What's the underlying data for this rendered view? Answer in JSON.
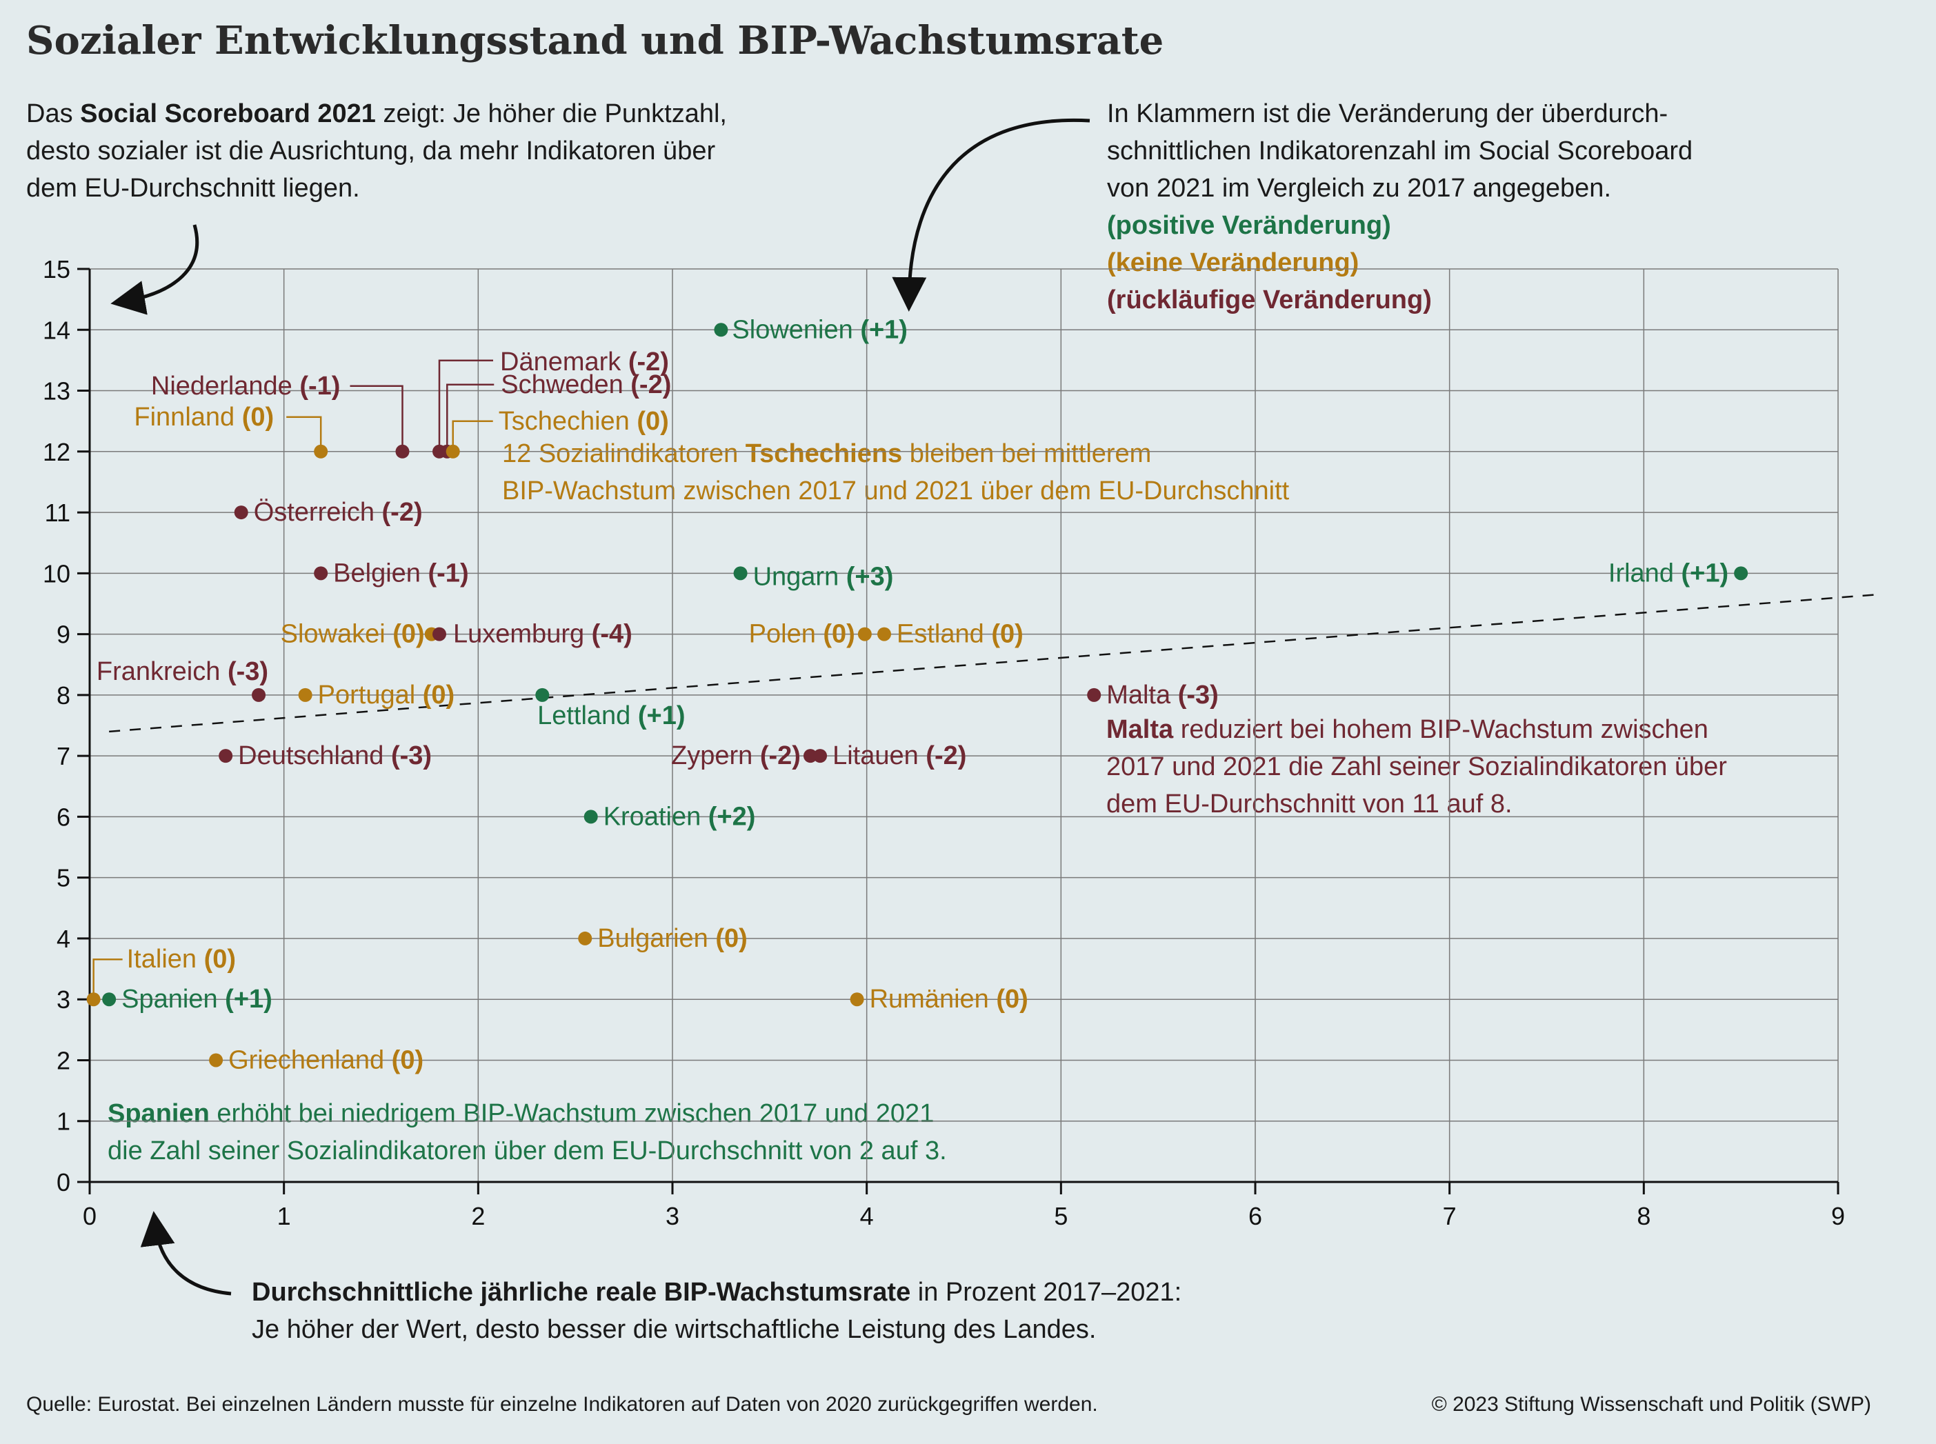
{
  "title": "Sozialer Entwicklungsstand und BIP-Wachstumsrate",
  "intro": {
    "line1_pre": "Das ",
    "line1_bold": "Social Scoreboard 2021",
    "line1_post": " zeigt: Je höher die Punktzahl,",
    "line2": "desto sozialer ist die Ausrichtung, da mehr Indikatoren über",
    "line3": "dem EU-Durchschnitt liegen."
  },
  "legend": {
    "line1": "In Klammern ist die Veränderung der überdurch-",
    "line2": "schnittlichen Indikatorenzahl im Social Scoreboard",
    "line3": "von 2021 im Vergleich zu 2017 angegeben.",
    "positive": "(positive Veränderung)",
    "none": "(keine Veränderung)",
    "negative": "(rückläufige Veränderung)"
  },
  "annotations": {
    "czech_pre": "12 Sozialindikatoren ",
    "czech_bold": "Tschechiens",
    "czech_post": " bleiben bei mittlerem",
    "czech_line2": "BIP-Wachstum zwischen 2017 und 2021 über dem EU-Durchschnitt",
    "malta_bold": "Malta",
    "malta_post": " reduziert bei hohem BIP-Wachstum zwischen",
    "malta_line2": "2017 und 2021 die Zahl seiner Sozialindikatoren über",
    "malta_line3": "dem EU-Durchschnitt von 11 auf 8.",
    "spain_bold": "Spanien",
    "spain_post": " erhöht bei niedrigem BIP-Wachstum zwischen 2017 und 2021",
    "spain_line2": "die Zahl seiner Sozialindikatoren über dem EU-Durchschnitt von 2 auf 3."
  },
  "x_caption": {
    "bold": "Durchschnittliche jährliche reale BIP-Wachstumsrate",
    "post": " in Prozent 2017–2021:",
    "line2": "Je höher der Wert, desto besser die wirtschaftliche Leistung des Landes."
  },
  "footer": {
    "source": "Quelle: Eurostat. Bei einzelnen Ländern musste für einzelne Indikatoren auf Daten von 2020 zurückgegriffen werden.",
    "copyright": "© 2023 Stiftung Wissenschaft und Politik (SWP)"
  },
  "colors": {
    "positive": "#1d7447",
    "none": "#b47b12",
    "negative": "#6f2832",
    "background": "#e3ebed",
    "grid": "#7a7a7a"
  },
  "chart_data": {
    "type": "scatter",
    "xlim": [
      0,
      9
    ],
    "ylim": [
      0,
      15
    ],
    "x_ticks": [
      0,
      1,
      2,
      3,
      4,
      5,
      6,
      7,
      8,
      9
    ],
    "y_ticks": [
      0,
      1,
      2,
      3,
      4,
      5,
      6,
      7,
      8,
      9,
      10,
      11,
      12,
      13,
      14,
      15
    ],
    "grid": "vertical and horizontal",
    "trendline": {
      "x": [
        0.1,
        9.2
      ],
      "y": [
        7.4,
        9.65
      ]
    },
    "points": [
      {
        "name": "Slowenien",
        "change": "(+1)",
        "trend": "positive",
        "x": 3.25,
        "y": 14
      },
      {
        "name": "Dänemark",
        "change": "(-2)",
        "trend": "negative",
        "x": 1.8,
        "y": 12
      },
      {
        "name": "Niederlande",
        "change": "(-1)",
        "trend": "negative",
        "x": 1.61,
        "y": 12
      },
      {
        "name": "Schweden",
        "change": "(-2)",
        "trend": "negative",
        "x": 1.84,
        "y": 12
      },
      {
        "name": "Finnland",
        "change": "(0)",
        "trend": "none",
        "x": 1.19,
        "y": 12
      },
      {
        "name": "Tschechien",
        "change": "(0)",
        "trend": "none",
        "x": 1.87,
        "y": 12
      },
      {
        "name": "Österreich",
        "change": "(-2)",
        "trend": "negative",
        "x": 0.78,
        "y": 11
      },
      {
        "name": "Belgien",
        "change": "(-1)",
        "trend": "negative",
        "x": 1.19,
        "y": 10
      },
      {
        "name": "Ungarn",
        "change": "(+3)",
        "trend": "positive",
        "x": 3.35,
        "y": 10
      },
      {
        "name": "Irland",
        "change": "(+1)",
        "trend": "positive",
        "x": 8.5,
        "y": 10
      },
      {
        "name": "Slowakei",
        "change": "(0)",
        "trend": "none",
        "x": 1.76,
        "y": 9
      },
      {
        "name": "Luxemburg",
        "change": "(-4)",
        "trend": "negative",
        "x": 1.8,
        "y": 9
      },
      {
        "name": "Polen",
        "change": "(0)",
        "trend": "none",
        "x": 3.99,
        "y": 9
      },
      {
        "name": "Estland",
        "change": "(0)",
        "trend": "none",
        "x": 4.09,
        "y": 9
      },
      {
        "name": "Frankreich",
        "change": "(-3)",
        "trend": "negative",
        "x": 0.87,
        "y": 8
      },
      {
        "name": "Portugal",
        "change": "(0)",
        "trend": "none",
        "x": 1.11,
        "y": 8
      },
      {
        "name": "Lettland",
        "change": "(+1)",
        "trend": "positive",
        "x": 2.33,
        "y": 8
      },
      {
        "name": "Malta",
        "change": "(-3)",
        "trend": "negative",
        "x": 5.17,
        "y": 8
      },
      {
        "name": "Deutschland",
        "change": "(-3)",
        "trend": "negative",
        "x": 0.7,
        "y": 7
      },
      {
        "name": "Zypern",
        "change": "(-2)",
        "trend": "negative",
        "x": 3.71,
        "y": 7
      },
      {
        "name": "Litauen",
        "change": "(-2)",
        "trend": "negative",
        "x": 3.76,
        "y": 7
      },
      {
        "name": "Kroatien",
        "change": "(+2)",
        "trend": "positive",
        "x": 2.58,
        "y": 6
      },
      {
        "name": "Bulgarien",
        "change": "(0)",
        "trend": "none",
        "x": 2.55,
        "y": 4
      },
      {
        "name": "Italien",
        "change": "(0)",
        "trend": "none",
        "x": 0.02,
        "y": 3
      },
      {
        "name": "Spanien",
        "change": "(+1)",
        "trend": "positive",
        "x": 0.1,
        "y": 3
      },
      {
        "name": "Rumänien",
        "change": "(0)",
        "trend": "none",
        "x": 3.95,
        "y": 3
      },
      {
        "name": "Griechenland",
        "change": "(0)",
        "trend": "none",
        "x": 0.65,
        "y": 2
      }
    ]
  }
}
